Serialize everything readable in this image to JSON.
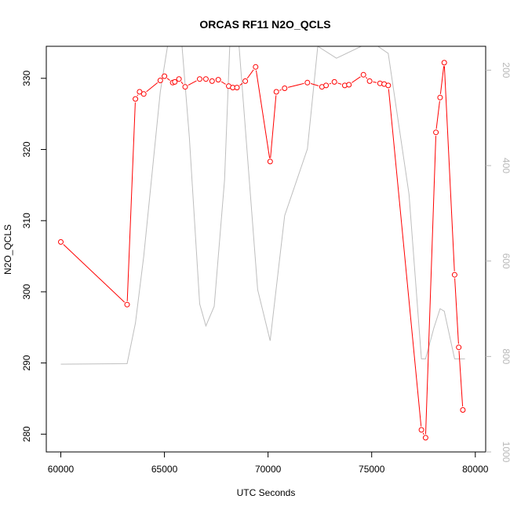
{
  "chart_data": {
    "type": "line",
    "title": "ORCAS RF11 N2O_QCLS",
    "xlabel": "UTC Seconds",
    "ylabel": "N2O_QCLS",
    "xlim": [
      59300,
      80500
    ],
    "ylim": [
      277.5,
      334.5
    ],
    "y2lim": [
      1000,
      150
    ],
    "y2_axis": "inverted",
    "grid": false,
    "legend": "none",
    "colors": {
      "series": "#ff0000",
      "altitude": "#bebebe",
      "axes": "#000000",
      "right_axis": "#b8b8b8"
    },
    "x_ticks": [
      60000,
      65000,
      70000,
      75000,
      80000
    ],
    "y_ticks": [
      280,
      290,
      300,
      310,
      320,
      330
    ],
    "y2_ticks": [
      200,
      400,
      600,
      800,
      1000
    ],
    "series": [
      {
        "values": [
          [
            60000,
            307.0
          ],
          [
            63200,
            298.2
          ],
          [
            63600,
            327.1
          ],
          [
            63800,
            328.1
          ],
          [
            64000,
            327.8
          ],
          [
            64800,
            329.7
          ],
          [
            65000,
            330.3
          ],
          [
            65400,
            329.4
          ],
          [
            65500,
            329.5
          ],
          [
            65700,
            329.9
          ],
          [
            66000,
            328.8
          ],
          [
            66700,
            329.9
          ],
          [
            67000,
            329.9
          ],
          [
            67300,
            329.6
          ],
          [
            67600,
            329.8
          ],
          [
            68100,
            328.9
          ],
          [
            68300,
            328.7
          ],
          [
            68500,
            328.7
          ],
          [
            68900,
            329.6
          ],
          [
            69400,
            331.6
          ],
          [
            70100,
            318.3
          ],
          [
            70400,
            328.1
          ],
          [
            70800,
            328.6
          ],
          [
            71900,
            329.4
          ],
          [
            72600,
            328.8
          ],
          [
            72800,
            329.0
          ],
          [
            73200,
            329.5
          ],
          [
            73700,
            329.0
          ],
          [
            73900,
            329.1
          ],
          [
            74600,
            330.5
          ],
          [
            74900,
            329.6
          ],
          [
            75400,
            329.3
          ],
          [
            75600,
            329.2
          ],
          [
            75800,
            329.0
          ],
          [
            77400,
            280.6
          ],
          [
            77600,
            279.5
          ],
          [
            78100,
            322.4
          ],
          [
            78300,
            327.3
          ],
          [
            78500,
            332.2
          ],
          [
            79000,
            302.4
          ],
          [
            79200,
            292.2
          ],
          [
            79400,
            283.4
          ]
        ]
      },
      {
        "axis": "right",
        "values": [
          [
            60000,
            816
          ],
          [
            63200,
            815
          ],
          [
            63600,
            730
          ],
          [
            64000,
            590
          ],
          [
            64800,
            245
          ],
          [
            65150,
            150
          ],
          [
            65850,
            150
          ],
          [
            66200,
            340
          ],
          [
            66700,
            690
          ],
          [
            67000,
            736
          ],
          [
            67400,
            695
          ],
          [
            67900,
            430
          ],
          [
            68150,
            150
          ],
          [
            68600,
            150
          ],
          [
            69500,
            660
          ],
          [
            70100,
            767
          ],
          [
            70800,
            505
          ],
          [
            71900,
            365
          ],
          [
            72400,
            150
          ],
          [
            73300,
            175
          ],
          [
            74500,
            150
          ],
          [
            75300,
            150
          ],
          [
            75800,
            165
          ],
          [
            76800,
            460
          ],
          [
            77400,
            805
          ],
          [
            77600,
            805
          ],
          [
            78000,
            740
          ],
          [
            78300,
            700
          ],
          [
            78500,
            705
          ],
          [
            79000,
            805
          ],
          [
            79500,
            805
          ]
        ]
      }
    ]
  }
}
